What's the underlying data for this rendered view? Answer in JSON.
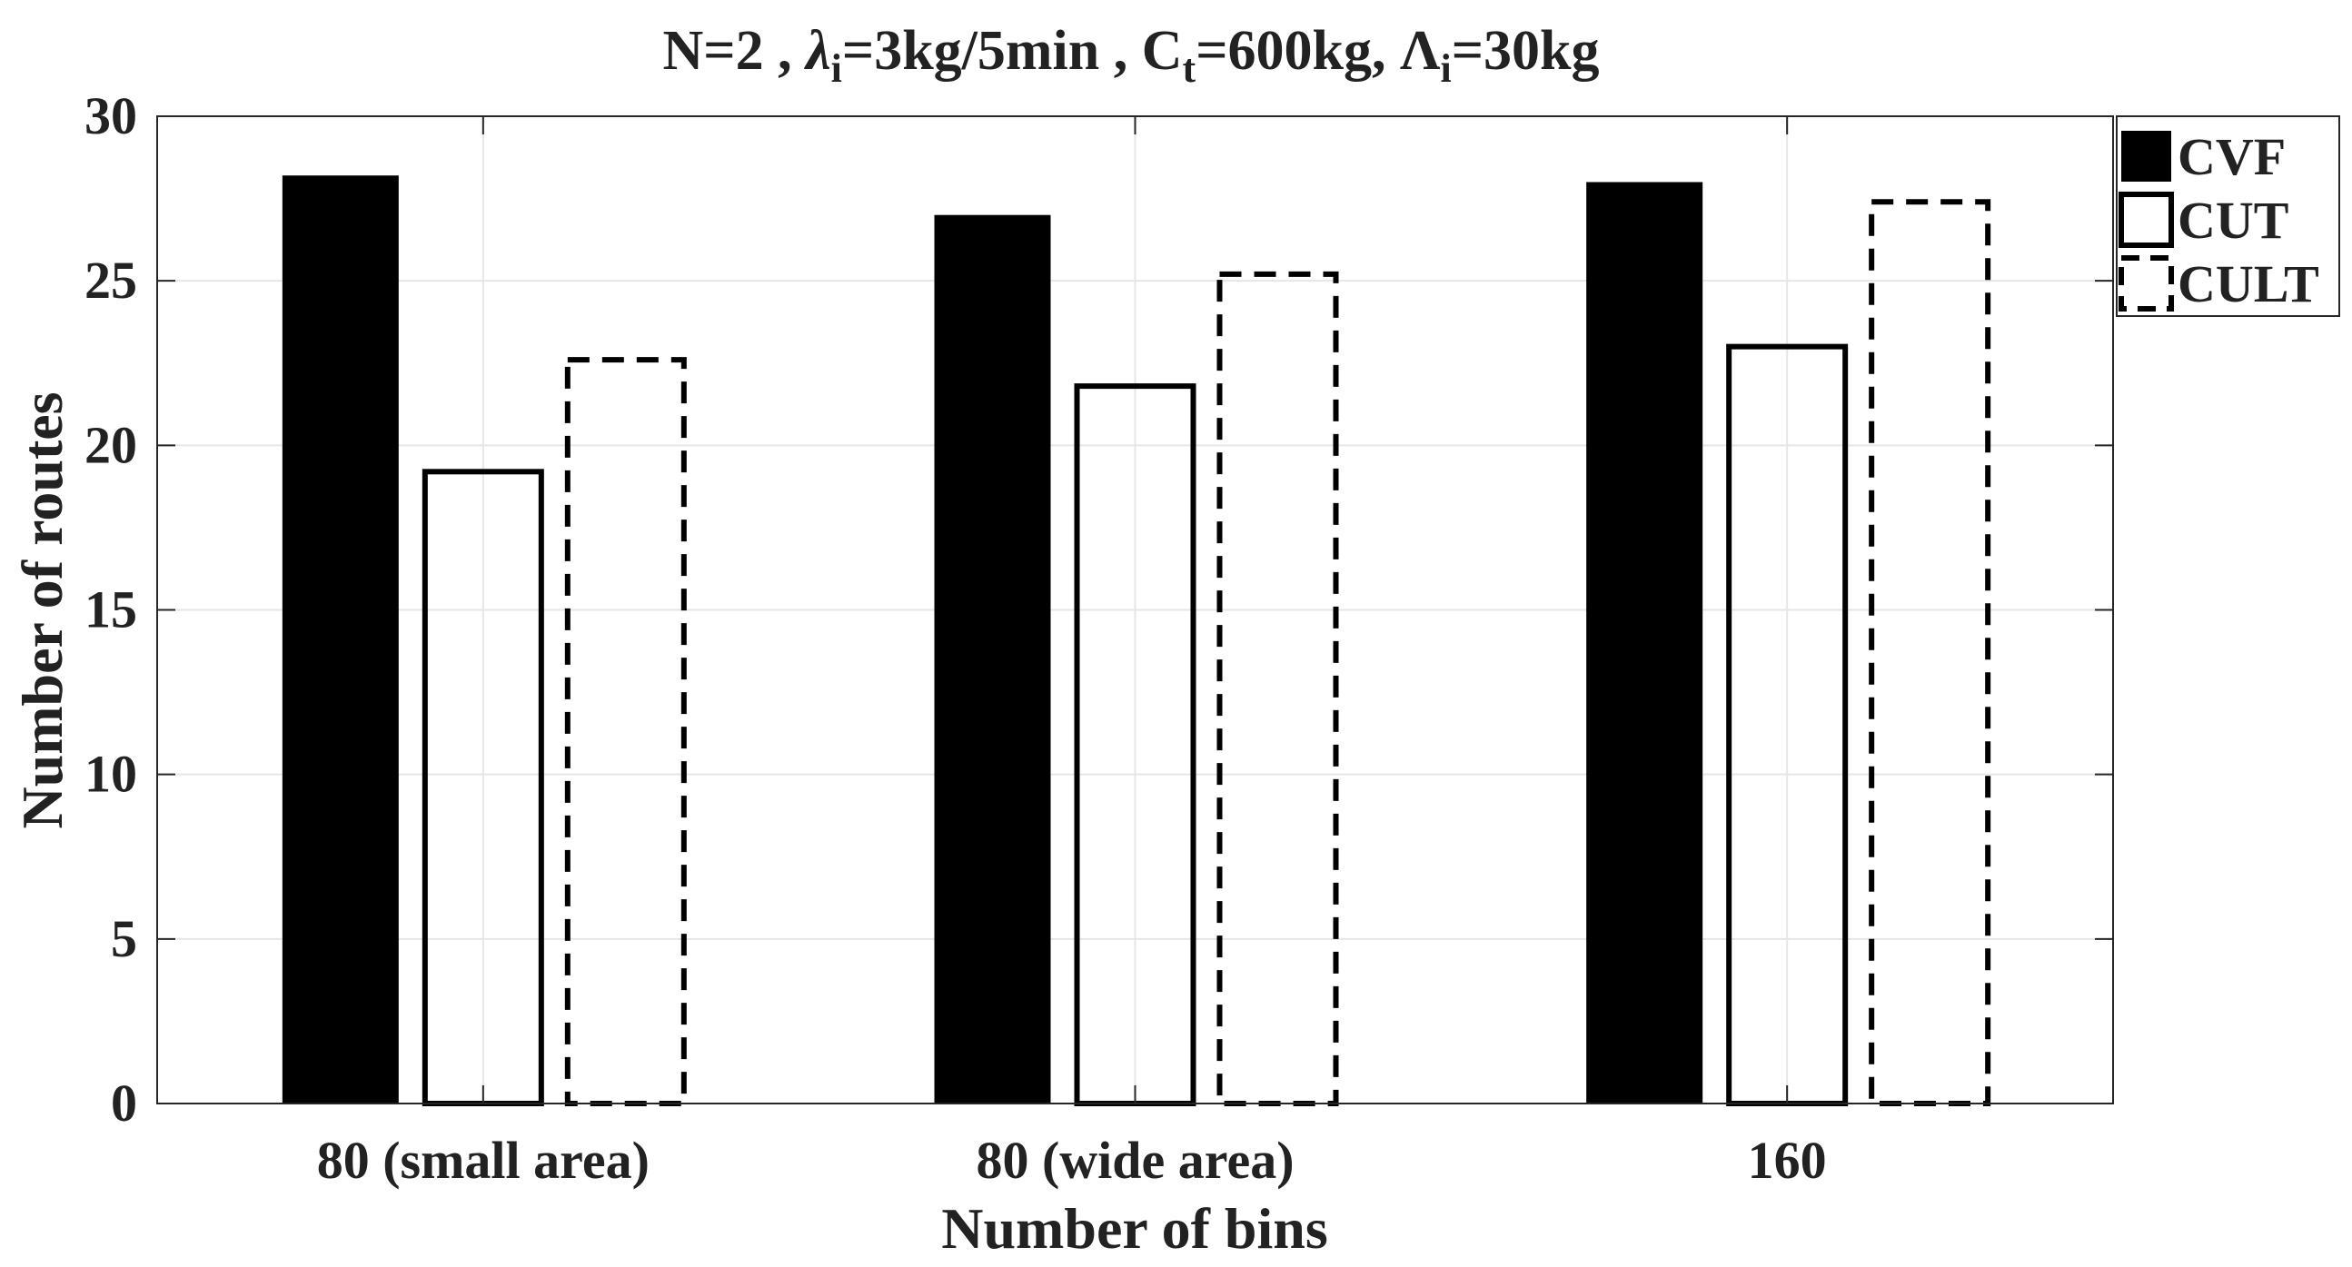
{
  "chart_data": {
    "type": "bar",
    "title": {
      "prefix": "N=2 , ",
      "lambda_symbol": "λ",
      "lambda_sub": "i",
      "lambda_value": "=3kg/5min , C",
      "c_sub": "t",
      "c_value": "=600kg, Λ",
      "cap_lambda_sub": "i",
      "cap_lambda_value": "=30kg"
    },
    "xlabel": "Number of bins",
    "ylabel": "Number of routes",
    "categories": [
      "80 (small area)",
      "80 (wide area)",
      "160"
    ],
    "ylim": [
      0,
      30
    ],
    "yticks": [
      "0",
      "5",
      "10",
      "15",
      "20",
      "25",
      "30"
    ],
    "grid": true,
    "legend_position": "outside-top-right",
    "series": [
      {
        "name": "CVF",
        "style": "solid-fill",
        "color": "#000000",
        "values": [
          28.2,
          27.0,
          28.0
        ]
      },
      {
        "name": "CUT",
        "style": "outline",
        "color": "#000000",
        "values": [
          19.2,
          21.8,
          23.0
        ]
      },
      {
        "name": "CULT",
        "style": "dashed-outline",
        "color": "#000000",
        "values": [
          22.6,
          25.2,
          27.4
        ]
      }
    ]
  }
}
